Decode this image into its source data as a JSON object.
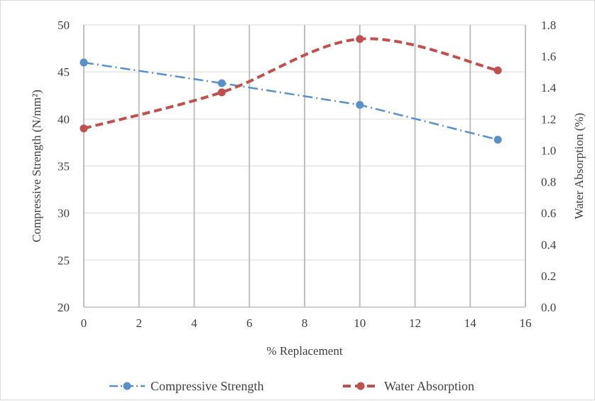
{
  "chart_data": {
    "type": "line",
    "title": "",
    "xlabel": "% Replacement",
    "ylabel": "Compressive Strength (N/mm²)",
    "y2label": "Water Absorption (%)",
    "xlim": [
      0,
      16
    ],
    "ylim": [
      20,
      50
    ],
    "y2lim": [
      0.0,
      1.8
    ],
    "x_ticks": [
      "0",
      "2",
      "4",
      "6",
      "8",
      "10",
      "12",
      "14",
      "16"
    ],
    "y_ticks": [
      "20",
      "25",
      "30",
      "35",
      "40",
      "45",
      "50"
    ],
    "y2_ticks": [
      "0.0",
      "0.2",
      "0.4",
      "0.6",
      "0.8",
      "1.0",
      "1.2",
      "1.4",
      "1.6",
      "1.8"
    ],
    "grid": "vertical and horizontal",
    "legend_position": "bottom",
    "series": [
      {
        "name": "Compressive Strength",
        "axis": "left",
        "color": "#5b8fc9",
        "line_style": "dash-dot",
        "x": [
          0,
          5,
          10,
          15
        ],
        "values": [
          46.0,
          43.8,
          41.5,
          37.8
        ]
      },
      {
        "name": "Water Absorption",
        "axis": "right",
        "color": "#c0504d",
        "line_style": "dashed",
        "smooth": true,
        "x": [
          0,
          5,
          10,
          15
        ],
        "values": [
          1.14,
          1.37,
          1.71,
          1.51
        ]
      }
    ]
  }
}
